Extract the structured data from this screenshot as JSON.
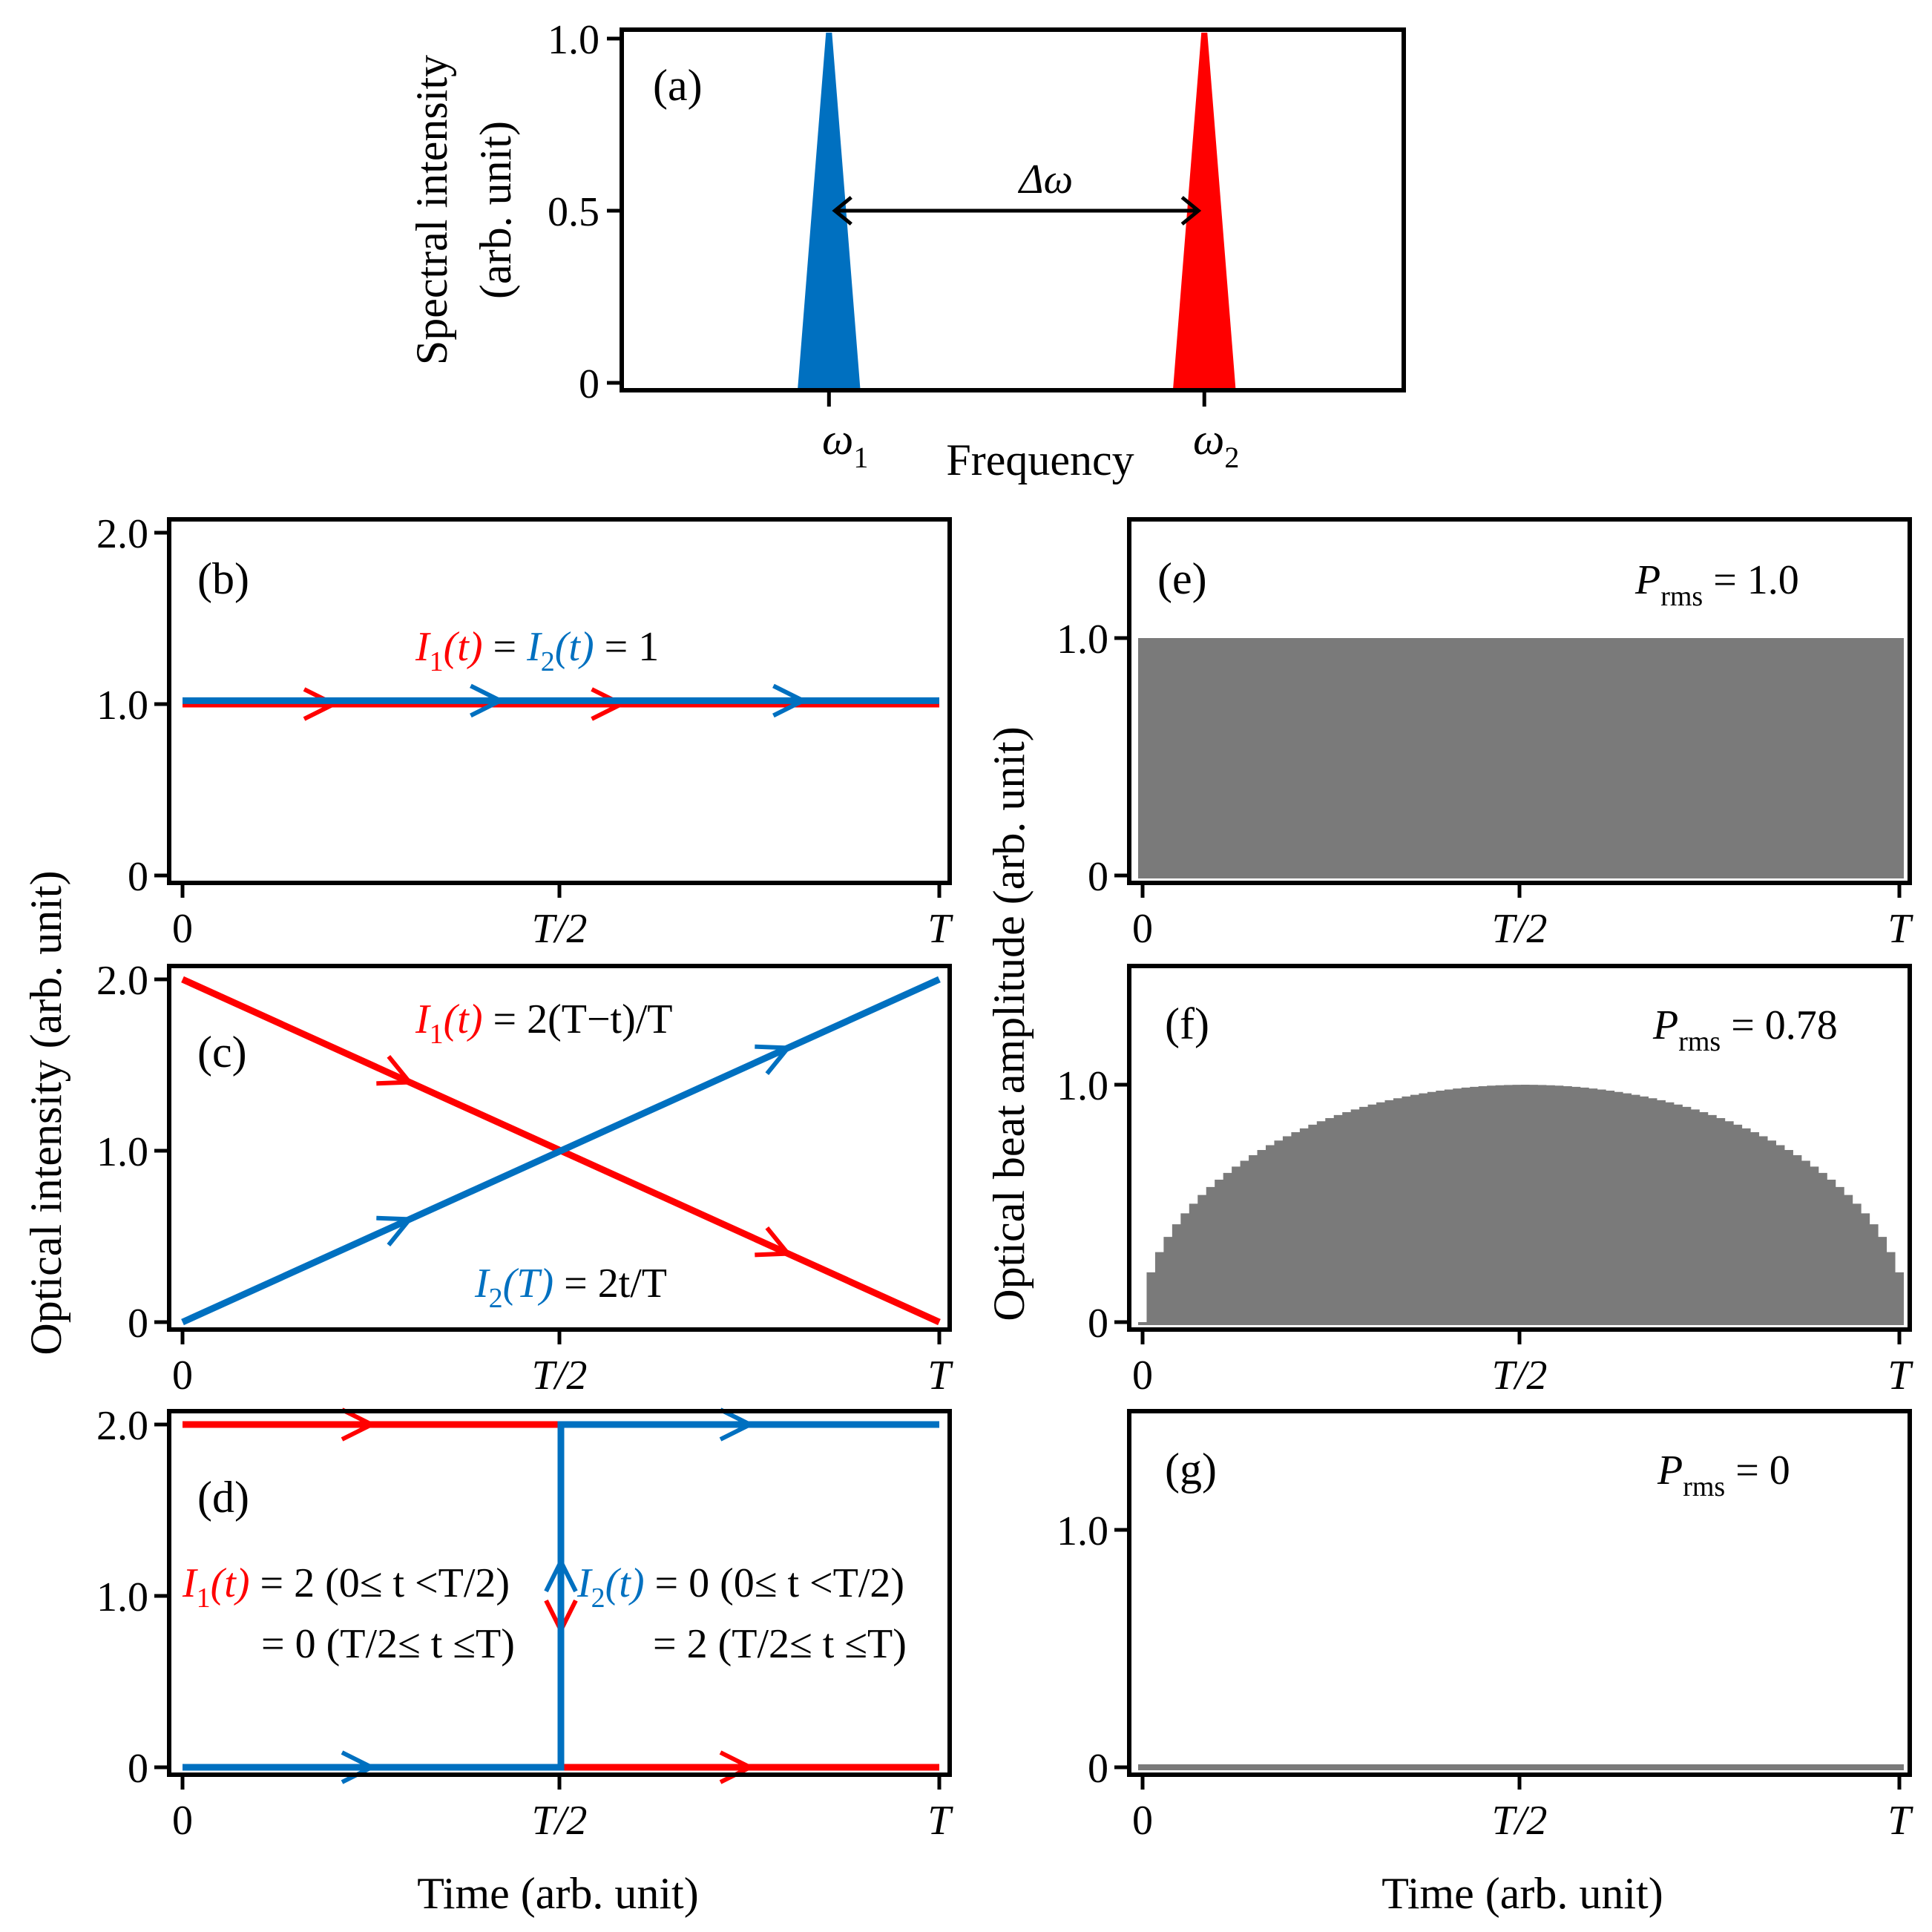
{
  "colors": {
    "red": "#ff0000",
    "blue": "#0070c0",
    "gray": "#7a7a7a",
    "black": "#000000"
  },
  "chart_data": [
    {
      "id": "a",
      "type": "area",
      "panel_label": "(a)",
      "xlabel": "Frequency",
      "ylabel_line1": "Spectral intensity",
      "ylabel_line2": "(arb. unit)",
      "yticks": [
        "1.0",
        "0.5",
        "0"
      ],
      "ylim": [
        0,
        1.0
      ],
      "peaks": [
        {
          "name": "omega1",
          "label_base": "ω",
          "label_sub": "1",
          "color": "blue",
          "center": 0.265,
          "half_width": 0.04,
          "height": 1.0
        },
        {
          "name": "omega2",
          "label_base": "ω",
          "label_sub": "2",
          "color": "red",
          "center": 0.745,
          "half_width": 0.04,
          "height": 1.0
        }
      ],
      "arrow": {
        "label": "Δω",
        "y": 0.5
      }
    },
    {
      "id": "b",
      "type": "line",
      "panel_label": "(b)",
      "ylim": [
        0,
        2.0
      ],
      "yticks": [
        "2.0",
        "1.0",
        "0"
      ],
      "xticks": [
        "0",
        "T/2",
        "T"
      ],
      "series": [
        {
          "name": "I1",
          "color": "red",
          "points": [
            [
              0,
              1.0
            ],
            [
              1,
              1.0
            ]
          ],
          "arrows_at": [
            0.2,
            0.58
          ]
        },
        {
          "name": "I2",
          "color": "blue",
          "points": [
            [
              0,
              1.02
            ],
            [
              1,
              1.02
            ]
          ],
          "arrows_at": [
            0.42,
            0.82
          ]
        }
      ],
      "eq": {
        "i1": "I",
        "i1sub": "1",
        "t1": "(t)",
        "eq1": " = ",
        "i2": "I",
        "i2sub": "2",
        "t2": "(t)",
        "rest": " = 1"
      }
    },
    {
      "id": "c",
      "type": "line",
      "panel_label": "(c)",
      "ylim": [
        0,
        2.0
      ],
      "yticks": [
        "2.0",
        "1.0",
        "0"
      ],
      "xticks": [
        "0",
        "T/2",
        "T"
      ],
      "series": [
        {
          "name": "I1",
          "color": "red",
          "points": [
            [
              0,
              2.0
            ],
            [
              1,
              0.0
            ]
          ],
          "arrows_at": [
            0.3,
            0.8
          ]
        },
        {
          "name": "I2",
          "color": "blue",
          "points": [
            [
              0,
              0.0
            ],
            [
              1,
              2.0
            ]
          ],
          "arrows_at": [
            0.3,
            0.8
          ]
        }
      ],
      "eq_top": {
        "i": "I",
        "sub": "1",
        "t": "(t)",
        "rest": " = 2(T−t)/T"
      },
      "eq_bottom": {
        "i": "I",
        "sub": "2",
        "t": "(T)",
        "rest": " = 2t/T"
      }
    },
    {
      "id": "d",
      "type": "line",
      "panel_label": "(d)",
      "ylim": [
        0,
        2.0
      ],
      "yticks": [
        "2.0",
        "1.0",
        "0"
      ],
      "xticks": [
        "0",
        "T/2",
        "T"
      ],
      "xlabel": "Time (arb. unit)",
      "series": [
        {
          "name": "I1",
          "color": "red",
          "points": [
            [
              0,
              2.0
            ],
            [
              0.5,
              2.0
            ],
            [
              0.5,
              0.0
            ],
            [
              1,
              0.0
            ]
          ]
        },
        {
          "name": "I2",
          "color": "blue",
          "points": [
            [
              0,
              0.0
            ],
            [
              0.5,
              0.0
            ],
            [
              0.5,
              2.0
            ],
            [
              1,
              2.0
            ]
          ]
        }
      ],
      "eq_left": {
        "i": "I",
        "sub": "1",
        "t": "(t)",
        "line1": " = 2 (0≤ t <T/2)",
        "line2": "= 0 (T/2≤ t ≤T)"
      },
      "eq_right": {
        "i": "I",
        "sub": "2",
        "t": "(t)",
        "line1": " = 0 (0≤ t <T/2)",
        "line2": "= 2 (T/2≤ t ≤T)"
      }
    },
    {
      "id": "e",
      "type": "area",
      "panel_label": "(e)",
      "p_label": "P",
      "p_sub": "rms",
      "p_value": " = 1.0",
      "ylim": [
        0,
        1.5
      ],
      "yticks": [
        "1.0",
        "0"
      ],
      "xticks": [
        "0",
        "T/2",
        "T"
      ],
      "shape": "constant",
      "value": 1.0
    },
    {
      "id": "f",
      "type": "area",
      "panel_label": "(f)",
      "p_label": "P",
      "p_sub": "rms",
      "p_value": " = 0.78",
      "ylim": [
        0,
        1.5
      ],
      "yticks": [
        "1.0",
        "0"
      ],
      "xticks": [
        "0",
        "T/2",
        "T"
      ],
      "shape": "semicircle",
      "value": 1.0
    },
    {
      "id": "g",
      "type": "area",
      "panel_label": "(g)",
      "p_label": "P",
      "p_sub": "rms",
      "p_value": " = 0",
      "ylim": [
        0,
        1.5
      ],
      "yticks": [
        "1.0",
        "0"
      ],
      "xticks": [
        "0",
        "T/2",
        "T"
      ],
      "xlabel": "Time (arb. unit)",
      "shape": "zero",
      "value": 0.0
    }
  ],
  "left_ylabel": "Optical intensity (arb. unit)",
  "right_ylabel": "Optical beat amplitude (arb. unit)"
}
